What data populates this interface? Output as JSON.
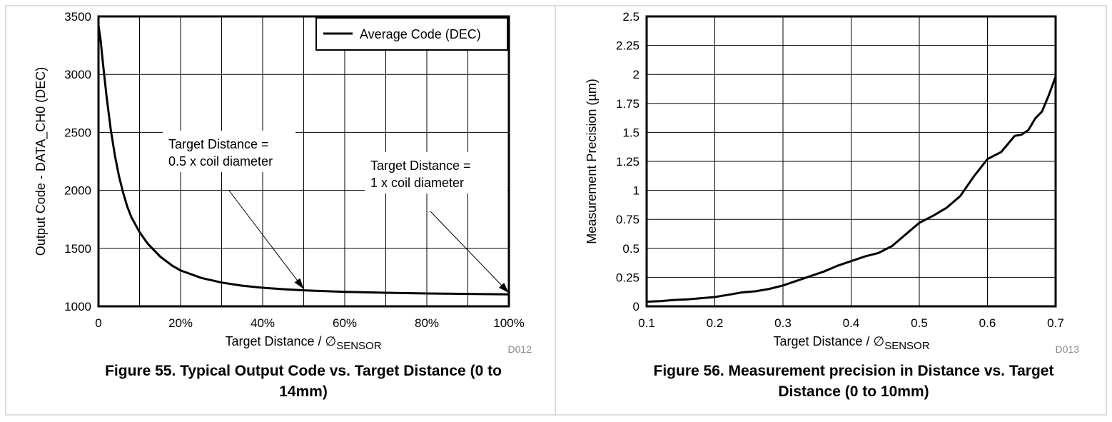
{
  "chart_data": [
    {
      "type": "line",
      "x_unit": "percent",
      "x_ticks": [
        "0",
        "20%",
        "40%",
        "60%",
        "80%",
        "100%"
      ],
      "y_ticks": [
        "1000",
        "1500",
        "2000",
        "2500",
        "3000",
        "3500"
      ],
      "xlim": [
        0,
        100
      ],
      "ylim": [
        1000,
        3500
      ],
      "grid": true,
      "xlabel_main": "Target Distance / ∅",
      "xlabel_sub": "SENSOR",
      "ylabel": "Output Code - DATA_CH0 (DEC)",
      "legend_position": "top-right",
      "series": [
        {
          "name": "Average Code (DEC)",
          "x": [
            0,
            0.5,
            1,
            2,
            3,
            4,
            5,
            6,
            7,
            8,
            10,
            12,
            15,
            18,
            20,
            25,
            30,
            35,
            40,
            45,
            50,
            60,
            70,
            80,
            90,
            100
          ],
          "y": [
            3420,
            3300,
            3120,
            2800,
            2520,
            2300,
            2120,
            1980,
            1860,
            1770,
            1640,
            1540,
            1430,
            1350,
            1310,
            1245,
            1205,
            1178,
            1160,
            1148,
            1138,
            1125,
            1117,
            1111,
            1107,
            1103
          ]
        }
      ],
      "annotations": [
        {
          "line1": "Target Distance =",
          "line2": "0.5 x coil diameter",
          "target_x": 50,
          "target_y": 1138
        },
        {
          "line1": "Target Distance =",
          "line2": "1 x coil diameter",
          "target_x": 100,
          "target_y": 1103
        }
      ],
      "code": "D012",
      "caption_line1": "Figure 55. Typical Output Code vs. Target Distance (0 to",
      "caption_line2": "14mm)"
    },
    {
      "type": "line",
      "x_ticks": [
        "0.1",
        "0.2",
        "0.3",
        "0.4",
        "0.5",
        "0.6",
        "0.7"
      ],
      "y_ticks": [
        "0",
        "0.25",
        "0.5",
        "0.75",
        "1",
        "1.25",
        "1.5",
        "1.75",
        "2",
        "2.25",
        "2.5"
      ],
      "xlim": [
        0.1,
        0.7
      ],
      "ylim": [
        0,
        2.5
      ],
      "grid": true,
      "xlabel_main": "Target Distance / ∅",
      "xlabel_sub": "SENSOR",
      "ylabel": "Measurement Precision (µm)",
      "series": [
        {
          "x": [
            0.1,
            0.12,
            0.14,
            0.16,
            0.18,
            0.2,
            0.22,
            0.24,
            0.26,
            0.28,
            0.3,
            0.32,
            0.34,
            0.36,
            0.38,
            0.4,
            0.42,
            0.44,
            0.46,
            0.48,
            0.5,
            0.52,
            0.54,
            0.56,
            0.58,
            0.6,
            0.62,
            0.63,
            0.64,
            0.65,
            0.66,
            0.67,
            0.68,
            0.69,
            0.7
          ],
          "y": [
            0.04,
            0.045,
            0.055,
            0.06,
            0.07,
            0.08,
            0.1,
            0.12,
            0.13,
            0.15,
            0.18,
            0.22,
            0.26,
            0.3,
            0.35,
            0.39,
            0.43,
            0.46,
            0.52,
            0.62,
            0.72,
            0.78,
            0.85,
            0.95,
            1.12,
            1.27,
            1.33,
            1.4,
            1.47,
            1.48,
            1.52,
            1.62,
            1.68,
            1.82,
            1.98
          ]
        }
      ],
      "code": "D013",
      "caption_line1": "Figure 56. Measurement precision in Distance vs. Target",
      "caption_line2": "Distance (0 to 10mm)"
    }
  ]
}
